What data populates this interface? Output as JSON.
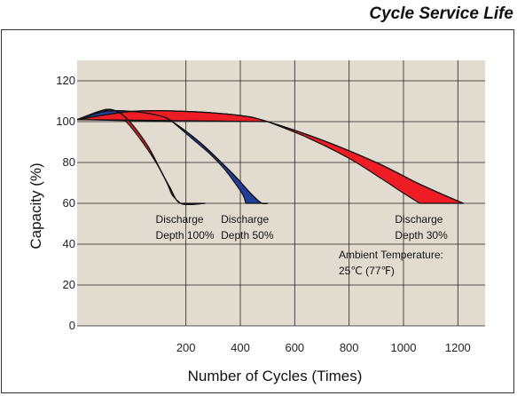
{
  "chart_data": {
    "type": "area",
    "title": "Cycle Service Life",
    "xlabel": "Number of Cycles (Times)",
    "ylabel": "Capacity (%)",
    "xlim": [
      -200,
      1300
    ],
    "ylim": [
      0,
      130
    ],
    "xticks": [
      200,
      400,
      600,
      800,
      1000,
      1200
    ],
    "yticks": [
      0,
      20,
      40,
      60,
      80,
      100,
      120
    ],
    "grid": true,
    "background": "#e2dcd0",
    "series": [
      {
        "name": "Depth 100%",
        "label_lines": [
          "Discharge",
          "Depth 100%"
        ],
        "color": "#ee1c24",
        "upper": [
          [
            -200,
            101
          ],
          [
            -120,
            105
          ],
          [
            -80,
            106
          ],
          [
            -40,
            104
          ],
          [
            0,
            99
          ],
          [
            60,
            88
          ],
          [
            100,
            78
          ],
          [
            140,
            68
          ],
          [
            180,
            60
          ],
          [
            270,
            60
          ]
        ],
        "lower": [
          [
            -80,
            106
          ],
          [
            -20,
            100
          ],
          [
            40,
            90
          ],
          [
            90,
            80
          ],
          [
            130,
            70
          ],
          [
            150,
            64
          ],
          [
            180,
            60
          ]
        ]
      },
      {
        "name": "Depth 50%",
        "label_lines": [
          "Discharge",
          "Depth 50%"
        ],
        "color": "#1f3f9a",
        "upper": [
          [
            -200,
            101
          ],
          [
            -100,
            105
          ],
          [
            0,
            105
          ],
          [
            100,
            103
          ],
          [
            150,
            100
          ],
          [
            250,
            90
          ],
          [
            330,
            80
          ],
          [
            390,
            72
          ],
          [
            430,
            66
          ],
          [
            460,
            62
          ],
          [
            480,
            60
          ],
          [
            500,
            60
          ]
        ],
        "lower": [
          [
            150,
            100
          ],
          [
            220,
            92
          ],
          [
            290,
            84
          ],
          [
            340,
            77
          ],
          [
            380,
            70
          ],
          [
            410,
            64
          ],
          [
            420,
            60
          ]
        ]
      },
      {
        "name": "Depth 30%",
        "label_lines": [
          "Discharge",
          "Depth 30%"
        ],
        "color": "#ee1c24",
        "upper": [
          [
            -200,
            101
          ],
          [
            0,
            105
          ],
          [
            200,
            105
          ],
          [
            400,
            103
          ],
          [
            500,
            100
          ],
          [
            700,
            91
          ],
          [
            900,
            80
          ],
          [
            1050,
            70
          ],
          [
            1150,
            64
          ],
          [
            1220,
            60
          ]
        ],
        "lower": [
          [
            500,
            100
          ],
          [
            650,
            92
          ],
          [
            800,
            82
          ],
          [
            920,
            72
          ],
          [
            1000,
            65
          ],
          [
            1060,
            60
          ]
        ]
      }
    ],
    "annotation": {
      "line1": "Ambient Temperature:",
      "line2": "25℃ (77℉)"
    }
  }
}
